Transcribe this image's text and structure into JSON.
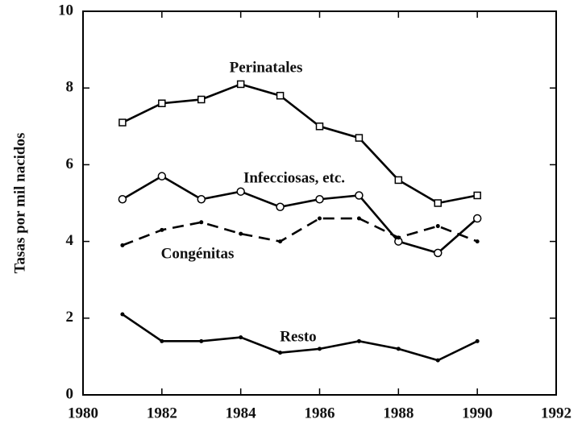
{
  "chart_data": {
    "type": "line",
    "y_label": "Tasas por mil nacidos",
    "x": [
      1981,
      1982,
      1983,
      1984,
      1985,
      1986,
      1987,
      1988,
      1989,
      1990
    ],
    "series": [
      {
        "name": "Perinatales",
        "color": "#000000",
        "marker": "square",
        "dashed": false,
        "values": [
          7.1,
          7.6,
          7.7,
          8.1,
          7.8,
          7.0,
          6.7,
          5.6,
          5.0,
          5.2
        ]
      },
      {
        "name": "Infecciosas, etc.",
        "color": "#000000",
        "marker": "circle",
        "dashed": false,
        "values": [
          5.1,
          5.7,
          5.1,
          5.3,
          4.9,
          5.1,
          5.2,
          4.0,
          3.7,
          4.6
        ]
      },
      {
        "name": "Congénitas",
        "color": "#000000",
        "marker": "dot",
        "dashed": true,
        "values": [
          3.9,
          4.3,
          4.5,
          4.2,
          4.0,
          4.6,
          4.6,
          4.1,
          4.4,
          4.0
        ]
      },
      {
        "name": "Resto",
        "color": "#000000",
        "marker": "dot",
        "dashed": false,
        "values": [
          2.1,
          1.4,
          1.4,
          1.5,
          1.1,
          1.2,
          1.4,
          1.2,
          0.9,
          1.4
        ]
      }
    ],
    "xlim": [
      1980,
      1992
    ],
    "xticks": [
      1980,
      1982,
      1984,
      1986,
      1988,
      1990,
      1992
    ],
    "ylim": [
      0,
      10
    ],
    "yticks": [
      0,
      2,
      4,
      6,
      8,
      10
    ],
    "grid": false
  }
}
